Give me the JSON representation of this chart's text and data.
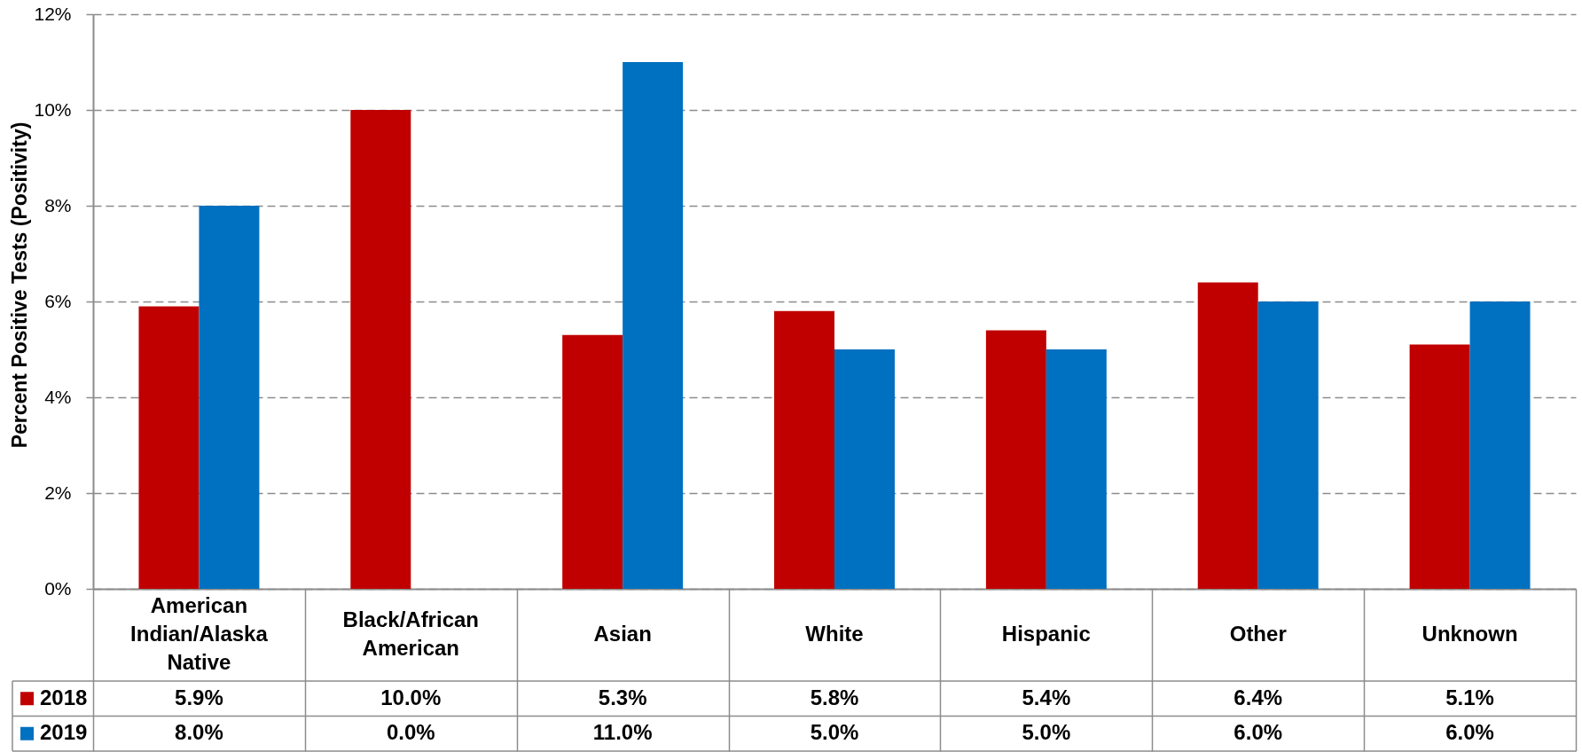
{
  "chart_data": {
    "type": "bar",
    "ylabel": "Percent Positive Tests (Positivity)",
    "categories": [
      "American Indian/Alaska Native",
      "Black/African American",
      "Asian",
      "White",
      "Hispanic",
      "Other",
      "Unknown"
    ],
    "series": [
      {
        "name": "2018",
        "color": "#c00000",
        "values": [
          5.9,
          10.0,
          5.3,
          5.8,
          5.4,
          6.4,
          5.1
        ],
        "value_labels": [
          "5.9%",
          "10.0%",
          "5.3%",
          "5.8%",
          "5.4%",
          "6.4%",
          "5.1%"
        ]
      },
      {
        "name": "2019",
        "color": "#0070c0",
        "values": [
          8.0,
          0.0,
          11.0,
          5.0,
          5.0,
          6.0,
          6.0
        ],
        "value_labels": [
          "8.0%",
          "0.0%",
          "11.0%",
          "5.0%",
          "5.0%",
          "6.0%",
          "6.0%"
        ]
      }
    ],
    "ylim": [
      0,
      12
    ],
    "yticks": [
      {
        "value": 0,
        "label": "0%"
      },
      {
        "value": 2,
        "label": "2%"
      },
      {
        "value": 4,
        "label": "4%"
      },
      {
        "value": 6,
        "label": "6%"
      },
      {
        "value": 8,
        "label": "8%"
      },
      {
        "value": 10,
        "label": "10%"
      },
      {
        "value": 12,
        "label": "12%"
      }
    ],
    "grid": "y",
    "legend": "bottom"
  }
}
